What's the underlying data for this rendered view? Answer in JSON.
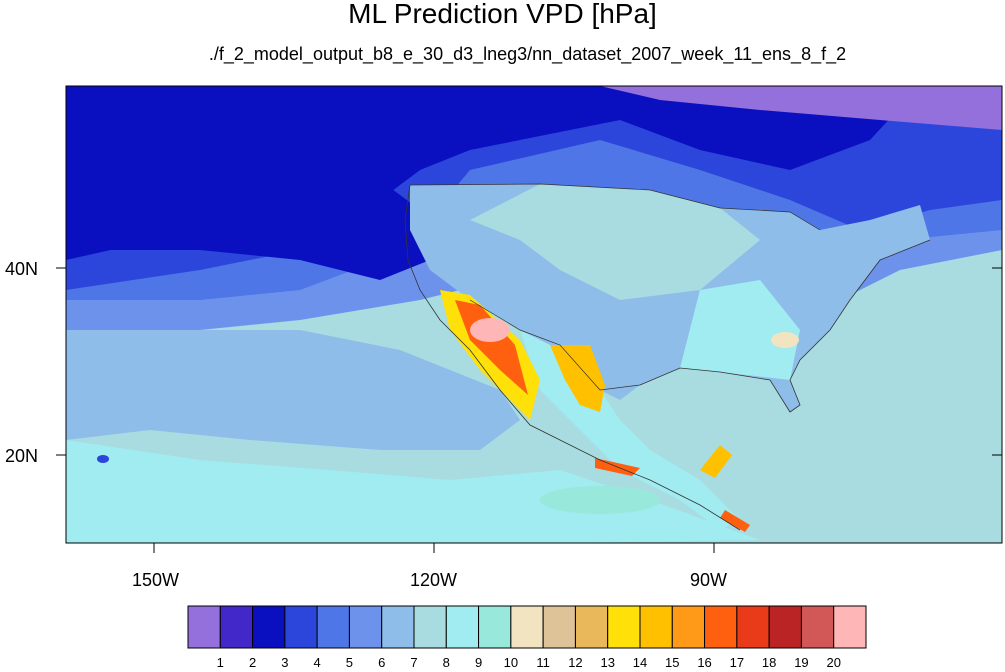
{
  "title": "ML Prediction VPD [hPa]",
  "subtitle": "./f_2_model_output_b8_e_30_d3_lneg3/nn_dataset_2007_week_11_ens_8_f_2",
  "axes": {
    "lon_labels": [
      "150W",
      "120W",
      "90W"
    ],
    "lat_labels": [
      "40N",
      "20N"
    ]
  },
  "colorbar": {
    "colors": [
      "#9370db",
      "#4228c8",
      "#0a0fc0",
      "#2c46db",
      "#4e76e6",
      "#6d92ec",
      "#8fbde9",
      "#a8dce0",
      "#a0ecf0",
      "#98e8dc",
      "#f2e4c0",
      "#dfc398",
      "#e9b85a",
      "#ffe008",
      "#ffc000",
      "#ff9a18",
      "#ff6010",
      "#e93a1a",
      "#bb2424",
      "#d25858",
      "#ffb6b6"
    ],
    "labels": [
      "1",
      "2",
      "3",
      "4",
      "5",
      "6",
      "7",
      "8",
      "9",
      "10",
      "11",
      "12",
      "13",
      "14",
      "15",
      "16",
      "17",
      "18",
      "19",
      "20"
    ]
  }
}
